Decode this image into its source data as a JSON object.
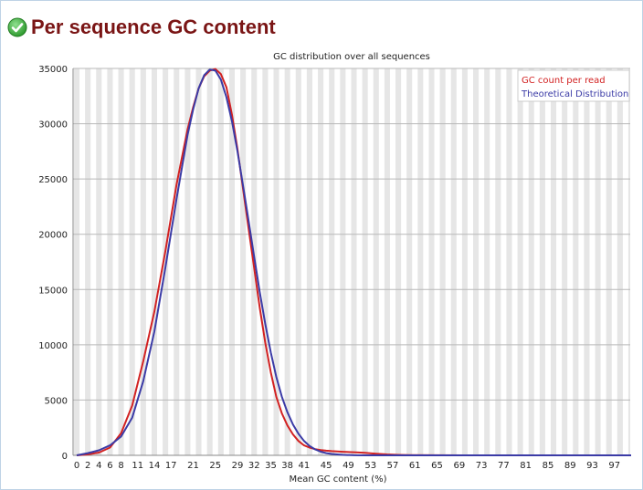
{
  "page": {
    "title": "Per sequence GC content",
    "status_icon": "check-circle-icon",
    "status_color": "#3aa53a",
    "title_color": "#7a1515"
  },
  "chart_data": {
    "type": "line",
    "title": "GC distribution over all sequences",
    "xlabel": "Mean GC content (%)",
    "ylabel": "",
    "xlim": [
      0,
      100
    ],
    "ylim": [
      0,
      35000
    ],
    "y_ticks": [
      0,
      5000,
      10000,
      15000,
      20000,
      25000,
      30000,
      35000
    ],
    "x_tick_labels": [
      "0",
      "2",
      "4",
      "6",
      "8",
      "11",
      "14",
      "17",
      "21",
      "25",
      "29",
      "32",
      "35",
      "38",
      "41",
      "45",
      "49",
      "53",
      "57",
      "61",
      "65",
      "69",
      "73",
      "77",
      "81",
      "85",
      "89",
      "93",
      "97"
    ],
    "x_tick_values": [
      0,
      2,
      4,
      6,
      8,
      11,
      14,
      17,
      21,
      25,
      29,
      32,
      35,
      38,
      41,
      45,
      49,
      53,
      57,
      61,
      65,
      69,
      73,
      77,
      81,
      85,
      89,
      93,
      97
    ],
    "grid": "vertical alternating bands, horizontal gridlines",
    "legend_position": "top-right",
    "series": [
      {
        "name": "GC count per read",
        "color": "#d22222",
        "x": [
          0,
          2,
          4,
          6,
          8,
          10,
          12,
          14,
          16,
          18,
          20,
          21,
          22,
          23,
          24,
          25,
          26,
          27,
          28,
          29,
          30,
          31,
          32,
          33,
          34,
          35,
          36,
          37,
          38,
          39,
          40,
          41,
          42,
          43,
          44,
          45,
          46,
          48,
          50,
          52,
          54,
          56,
          58,
          60,
          65,
          70,
          75,
          80,
          85,
          90,
          95,
          100
        ],
        "y": [
          0,
          80,
          250,
          700,
          2000,
          4500,
          8500,
          13000,
          18500,
          24500,
          29500,
          31500,
          33200,
          34300,
          34800,
          34950,
          34500,
          33300,
          30800,
          27700,
          24100,
          20500,
          17000,
          13400,
          10200,
          7500,
          5300,
          3800,
          2700,
          1900,
          1300,
          900,
          700,
          560,
          480,
          420,
          380,
          320,
          280,
          220,
          150,
          80,
          40,
          20,
          5,
          2,
          0,
          0,
          0,
          0,
          0,
          0
        ]
      },
      {
        "name": "Theoretical Distribution",
        "color": "#3b3ba6",
        "x": [
          0,
          2,
          4,
          6,
          8,
          10,
          12,
          14,
          16,
          18,
          20,
          21,
          22,
          23,
          24,
          25,
          26,
          27,
          28,
          29,
          30,
          31,
          32,
          33,
          34,
          35,
          36,
          37,
          38,
          39,
          40,
          41,
          42,
          43,
          44,
          45,
          46,
          48,
          50,
          52,
          54,
          56,
          58,
          60,
          65,
          70,
          75,
          80,
          85,
          90,
          95,
          100
        ],
        "y": [
          0,
          200,
          450,
          900,
          1700,
          3400,
          6700,
          11200,
          17000,
          23200,
          29000,
          31300,
          33200,
          34400,
          34900,
          34800,
          34000,
          32400,
          30200,
          27500,
          24400,
          21200,
          18000,
          14800,
          11900,
          9300,
          7100,
          5300,
          3900,
          2800,
          1950,
          1300,
          850,
          540,
          330,
          200,
          120,
          40,
          10,
          2,
          0,
          0,
          0,
          0,
          0,
          0,
          0,
          0,
          0,
          0,
          0,
          0
        ]
      }
    ]
  }
}
